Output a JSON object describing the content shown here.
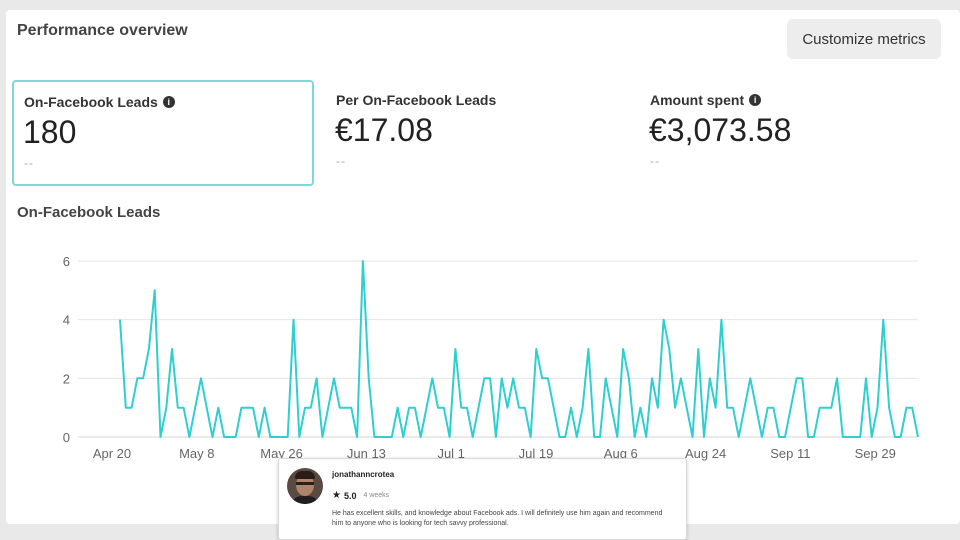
{
  "panel": {
    "title": "Performance overview",
    "customize_label": "Customize metrics"
  },
  "metrics": [
    {
      "label": "On-Facebook Leads",
      "value": "180",
      "compare": "--",
      "has_info": true
    },
    {
      "label": "Per On-Facebook Leads",
      "value": "€17.08",
      "compare": "--",
      "has_info": false
    },
    {
      "label": "Amount spent",
      "value": "€3,073.58",
      "compare": "--",
      "has_info": true
    }
  ],
  "icons": {
    "info": "info-icon",
    "star": "star-icon"
  },
  "colors": {
    "line": "#2fcfcf",
    "selected_border": "#7fd8d8"
  },
  "chart_title": "On-Facebook Leads",
  "chart_data": {
    "type": "line",
    "title": "On-Facebook Leads",
    "grid": true,
    "ylim": [
      0,
      6
    ],
    "yticks": [
      0,
      2,
      4,
      6
    ],
    "xlim": [
      "2024-04-20",
      "2024-10-03"
    ],
    "xtick_labels": [
      "Apr 20",
      "May 8",
      "May 26",
      "Jun 13",
      "Jul 1",
      "Jul 19",
      "Aug 6",
      "Aug 24",
      "Sep 11",
      "Sep 29"
    ],
    "series": [
      {
        "values": [
          4,
          1,
          1,
          2,
          2,
          3,
          5,
          0,
          1,
          3,
          1,
          1,
          0,
          1,
          2,
          1,
          0,
          1,
          0,
          0,
          0,
          1,
          1,
          1,
          0,
          1,
          0,
          0,
          0,
          0,
          4,
          0,
          1,
          1,
          2,
          0,
          1,
          2,
          1,
          1,
          1,
          0,
          6,
          2,
          0,
          0,
          0,
          0,
          1,
          0,
          1,
          1,
          0,
          1,
          2,
          1,
          1,
          0,
          3,
          1,
          1,
          0,
          1,
          2,
          2,
          0,
          2,
          1,
          2,
          1,
          1,
          0,
          3,
          2,
          2,
          1,
          0,
          0,
          1,
          0,
          1,
          3,
          0,
          0,
          2,
          1,
          0,
          3,
          2,
          0,
          1,
          0,
          2,
          1,
          4,
          3,
          1,
          2,
          1,
          0,
          3,
          0,
          2,
          1,
          4,
          1,
          1,
          0,
          1,
          2,
          1,
          0,
          1,
          1,
          0,
          0,
          1,
          2,
          2,
          0,
          0,
          1,
          1,
          1,
          2,
          0,
          0,
          0,
          0,
          2,
          0,
          1,
          4,
          1,
          0,
          0,
          1,
          1,
          0
        ]
      }
    ]
  },
  "review": {
    "username": "jonathanncrotea",
    "rating": "5.0",
    "time": "4 weeks",
    "text": "He has excellent skills, and knowledge about Facebook ads. I will definitely use him again and recommend him to anyone who is looking for tech savvy professional."
  }
}
